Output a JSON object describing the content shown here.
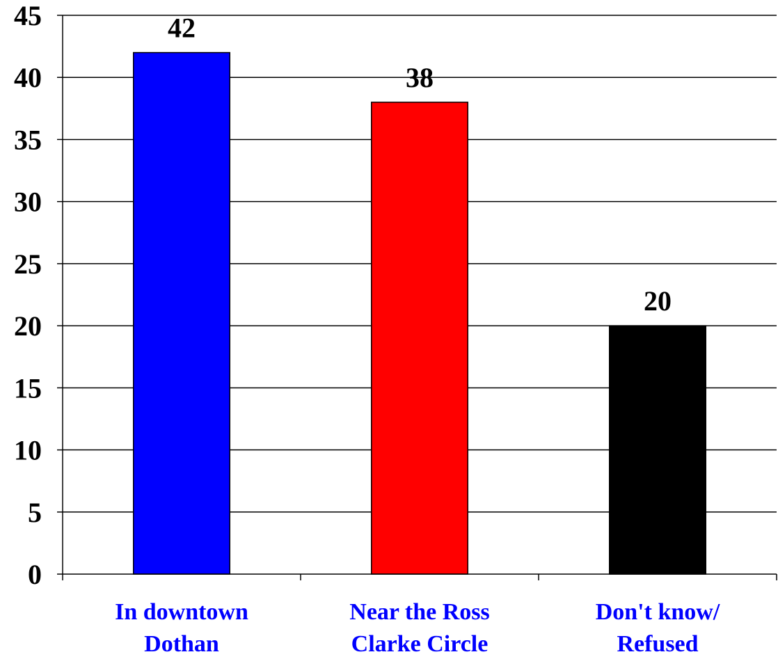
{
  "chart_data": {
    "type": "bar",
    "categories": [
      [
        "In downtown",
        "Dothan"
      ],
      [
        "Near the Ross",
        "Clarke Circle"
      ],
      [
        "Don't know/",
        "Refused"
      ]
    ],
    "values": [
      42,
      38,
      20
    ],
    "data_labels": [
      "42",
      "38",
      "20"
    ],
    "bar_colors": [
      "#0000ff",
      "#ff0000",
      "#000000"
    ],
    "category_label_color": "#0000ff",
    "ylim": [
      0,
      45
    ],
    "yticks": [
      0,
      5,
      10,
      15,
      20,
      25,
      30,
      35,
      40,
      45
    ],
    "grid": true,
    "legend": "none",
    "title": "",
    "xlabel": "",
    "ylabel": ""
  }
}
